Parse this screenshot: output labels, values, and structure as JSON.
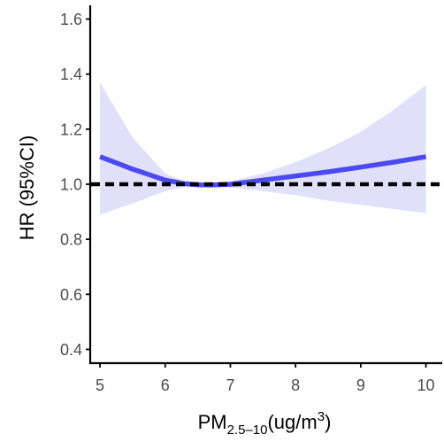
{
  "chart_data": {
    "type": "line",
    "ylabel": "HR (95%CI)",
    "xlabel": {
      "base": "PM",
      "sub": "2.5–10",
      "unit_open": "(ug/m",
      "sup": "3",
      "unit_close": ")"
    },
    "xlim": [
      4.85,
      10.25
    ],
    "ylim": [
      0.35,
      1.65
    ],
    "x_ticks": [
      5,
      6,
      7,
      8,
      9,
      10
    ],
    "x_tick_labels": [
      "5",
      "6",
      "7",
      "8",
      "9",
      "10"
    ],
    "y_ticks": [
      0.4,
      0.6,
      0.8,
      1.0,
      1.2,
      1.4,
      1.6
    ],
    "y_tick_labels": [
      "0.4",
      "0.6",
      "0.8",
      "1.0",
      "1.2",
      "1.4",
      "1.6"
    ],
    "grid": false,
    "reference_line": {
      "y": 1.0,
      "style": "dashed",
      "color": "#000000"
    },
    "series": [
      {
        "x": [
          5.0,
          5.5,
          6.0,
          6.3,
          6.5,
          6.7,
          7.0,
          7.5,
          8.0,
          8.5,
          9.0,
          9.5,
          10.0
        ],
        "y": [
          1.1,
          1.055,
          1.015,
          1.002,
          0.998,
          0.997,
          1.0,
          1.015,
          1.03,
          1.045,
          1.062,
          1.08,
          1.1
        ],
        "lower": [
          0.89,
          0.93,
          0.975,
          0.99,
          0.992,
          0.992,
          0.988,
          0.975,
          0.96,
          0.94,
          0.925,
          0.91,
          0.895
        ],
        "upper": [
          1.37,
          1.17,
          1.04,
          1.01,
          1.004,
          1.003,
          1.01,
          1.04,
          1.08,
          1.13,
          1.19,
          1.27,
          1.36
        ],
        "color": "#4a4af0",
        "band_color": "#e0e0fb"
      }
    ]
  }
}
